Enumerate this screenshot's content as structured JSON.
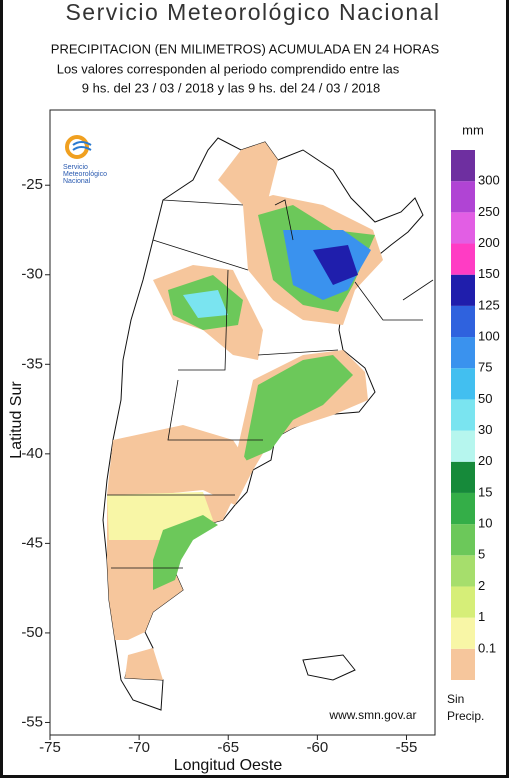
{
  "header": {
    "title": "Servicio Meteorológico Nacional",
    "subtitle": "PRECIPITACION (EN MILIMETROS) ACUMULADA EN 24 HORAS",
    "period_line1": "Los valores corresponden al periodo comprendido entre las",
    "period_line2": "9 hs. del 23 / 03 / 2018  y las 9 hs. del 24 / 03 / 2018"
  },
  "logo": {
    "lines": [
      "Servicio",
      "Meteorológico",
      "Nacional"
    ]
  },
  "map": {
    "xlabel": "Longitud Oeste",
    "ylabel": "Latitud Sur",
    "xlim": [
      -75,
      -53.4
    ],
    "ylim": [
      -20.8,
      -55.7
    ],
    "xticks": [
      -75,
      -70,
      -65,
      -60,
      -55
    ],
    "yticks": [
      -25,
      -30,
      -35,
      -40,
      -45,
      -50,
      -55
    ]
  },
  "legend": {
    "unit": "mm",
    "colors": [
      "#f6c69c",
      "#f8f6a6",
      "#d6ee78",
      "#a6de6c",
      "#6cc85a",
      "#34ae48",
      "#168a3a",
      "#b6f6ee",
      "#7ae4f0",
      "#42bff0",
      "#3a92ee",
      "#2f62de",
      "#1f1eac",
      "#ff3cc4",
      "#e25ee4",
      "#b044d4",
      "#6e2fa0"
    ],
    "labels": [
      "0.1",
      "1",
      "2",
      "5",
      "10",
      "15",
      "20",
      "30",
      "50",
      "75",
      "100",
      "125",
      "150",
      "200",
      "250",
      "300"
    ],
    "none_line1": "Sin",
    "none_line2": "Precip."
  },
  "credit": "www.smn.gov.ar"
}
